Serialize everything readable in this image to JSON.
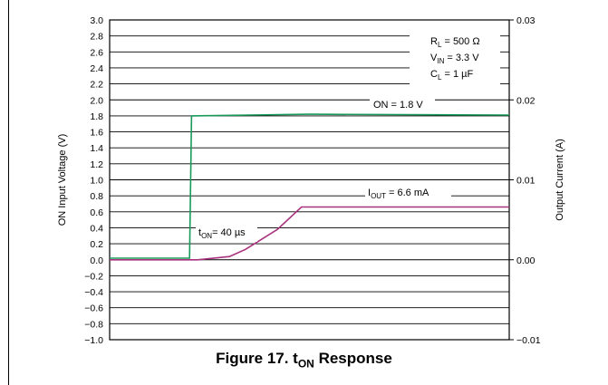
{
  "chart_data": {
    "type": "line",
    "x_range": [
      0,
      1
    ],
    "ylabel": "ON Input Voltage (V)",
    "ylim": [
      -1.0,
      3.0
    ],
    "y_ticks": [
      "3.0",
      "2.8",
      "2.6",
      "2.4",
      "2.2",
      "2.0",
      "1.8",
      "1.6",
      "1.4",
      "1.2",
      "1.0",
      "0.8",
      "0.6",
      "0.4",
      "0.2",
      "0.0",
      "−0.2",
      "−0.4",
      "−0.6",
      "−0.8",
      "−1.0"
    ],
    "y2label": "Output Current (A)",
    "y2lim": [
      -0.01,
      0.03
    ],
    "y2_ticks": [
      {
        "value": 0.03,
        "label": "0.03"
      },
      {
        "value": 0.02,
        "label": "0.02"
      },
      {
        "value": 0.01,
        "label": "0.01"
      },
      {
        "value": 0.0,
        "label": "0.00"
      },
      {
        "value": -0.01,
        "label": "−0.01"
      }
    ],
    "grid": true,
    "series": [
      {
        "axis": "left",
        "color": "#1a9a5a",
        "points": [
          [
            0.0,
            0.02
          ],
          [
            0.2,
            0.02
          ],
          [
            0.205,
            1.8
          ],
          [
            0.35,
            1.81
          ],
          [
            0.5,
            1.82
          ],
          [
            1.0,
            1.81
          ]
        ]
      },
      {
        "axis": "right",
        "color": "#a8327e",
        "points": [
          [
            0.0,
            0.0
          ],
          [
            0.22,
            0.0
          ],
          [
            0.3,
            0.0004
          ],
          [
            0.34,
            0.0013
          ],
          [
            0.42,
            0.0038
          ],
          [
            0.48,
            0.0066
          ],
          [
            1.0,
            0.0066
          ]
        ]
      }
    ],
    "annotations": {
      "rl": {
        "main": "R",
        "sub": "L",
        "rest": " = 500 Ω"
      },
      "vin": {
        "main": "V",
        "sub": "IN",
        "rest": " = 3.3 V"
      },
      "cl": {
        "main": "C",
        "sub": "L",
        "rest": " = 1 µF"
      },
      "on": "ON = 1.8 V",
      "iout": {
        "main": "I",
        "sub": "OUT",
        "rest": " = 6.6 mA"
      },
      "ton": {
        "main": "t",
        "sub": "ON",
        "rest": "= 40 µs"
      }
    }
  },
  "caption": {
    "prefix": "Figure 17.  t",
    "sub": "ON",
    "suffix": " Response"
  }
}
